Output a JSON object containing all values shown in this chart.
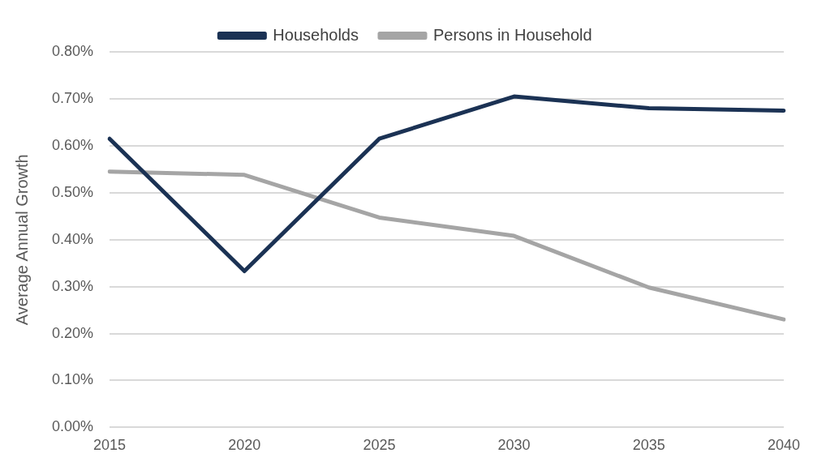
{
  "chart_data": {
    "type": "line",
    "ylabel": "Average Annual Growth",
    "categories": [
      "2015",
      "2020",
      "2025",
      "2030",
      "2035",
      "2040"
    ],
    "series": [
      {
        "name": "Households",
        "color": "#1b3254",
        "values": [
          0.615,
          0.333,
          0.615,
          0.705,
          0.68,
          0.675
        ]
      },
      {
        "name": "Persons in Household",
        "color": "#a5a5a5",
        "values": [
          0.545,
          0.538,
          0.447,
          0.408,
          0.298,
          0.23
        ]
      }
    ],
    "ylim": [
      0,
      0.8
    ],
    "yticks": [
      {
        "value": 0,
        "label": "0.00%"
      },
      {
        "value": 0.1,
        "label": "0.10%"
      },
      {
        "value": 0.2,
        "label": "0.20%"
      },
      {
        "value": 0.3,
        "label": "0.30%"
      },
      {
        "value": 0.4,
        "label": "0.40%"
      },
      {
        "value": 0.5,
        "label": "0.50%"
      },
      {
        "value": 0.6,
        "label": "0.60%"
      },
      {
        "value": 0.7,
        "label": "0.70%"
      },
      {
        "value": 0.8,
        "label": "0.80%"
      }
    ],
    "grid": "y",
    "legend": "top",
    "marker": "none",
    "line_style": "solid"
  }
}
